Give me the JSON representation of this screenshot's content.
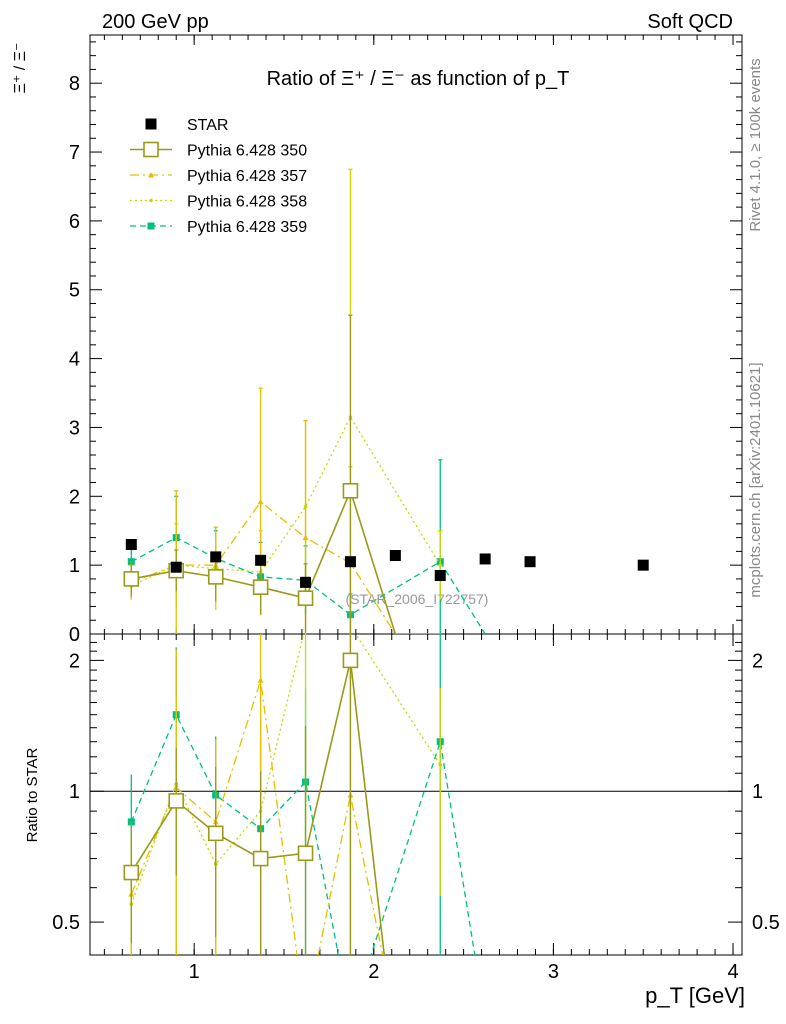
{
  "header": {
    "left": "200 GeV pp",
    "right": "Soft QCD"
  },
  "side_labels": {
    "rivet": "Rivet 4.1.0, ≥ 100k events",
    "mcplots": "mcplots.cern.ch [arXiv:2401.10621]"
  },
  "colors": {
    "star": "#000000",
    "p350": "#9a9a1a",
    "p357": "#e6c000",
    "p358": "#c8d800",
    "p359": "#00c080"
  },
  "chart_data": {
    "type": "line",
    "title": "Ratio of Ξ⁺ / Ξ⁻ as function of p_T",
    "xlabel": "p_T [GeV]",
    "ylabel": "Ξ⁺ / Ξ⁻",
    "ratio_ylabel": "Ratio to STAR",
    "watermark": "(STAR_2006_I722757)",
    "xlim": [
      0.42,
      4.05
    ],
    "ylim": [
      0,
      8.7
    ],
    "ratio_ylim": [
      0.42,
      2.3
    ],
    "xticks": [
      1,
      2,
      3,
      4
    ],
    "yticks": [
      0,
      1,
      2,
      3,
      4,
      5,
      6,
      7,
      8
    ],
    "ratio_yticks": [
      0.5,
      1,
      2
    ],
    "legend_position": "top-left",
    "series": [
      {
        "name": "STAR",
        "style": "data",
        "x": [
          0.65,
          0.9,
          1.12,
          1.37,
          1.62,
          1.87,
          2.12,
          2.37,
          2.62,
          2.87,
          3.5
        ],
        "y": [
          1.3,
          0.97,
          1.12,
          1.07,
          0.75,
          1.05,
          1.14,
          0.85,
          1.09,
          1.05,
          1.0
        ]
      },
      {
        "name": "Pythia 6.428 350",
        "style": "solid",
        "marker": "open-square",
        "x": [
          0.65,
          0.9,
          1.12,
          1.37,
          1.62,
          1.87,
          2.12,
          2.37
        ],
        "y": [
          0.8,
          0.92,
          0.83,
          0.68,
          0.52,
          2.08,
          0.0,
          0.0
        ],
        "yerr": [
          0.25,
          0.3,
          0.35,
          0.4,
          0.5,
          2.55,
          0.0,
          0.0
        ],
        "ratio": [
          0.65,
          0.95,
          0.8,
          0.7,
          0.72,
          2.0,
          0.0,
          0.0
        ]
      },
      {
        "name": "Pythia 6.428 357",
        "style": "dashdot",
        "marker": "small-triangle",
        "x": [
          0.65,
          0.9,
          1.12,
          1.37,
          1.62,
          1.87,
          2.12,
          2.37
        ],
        "y": [
          0.75,
          1.0,
          1.0,
          1.92,
          1.4,
          1.03,
          0.0,
          0.0
        ],
        "yerr": [
          0.25,
          1.08,
          0.55,
          1.65,
          1.7,
          1.4,
          0.0,
          0.0
        ],
        "ratio": [
          0.58,
          1.02,
          0.85,
          1.8,
          0.3,
          0.98,
          0.3,
          0.0
        ]
      },
      {
        "name": "Pythia 6.428 358",
        "style": "dotted",
        "marker": "small-dot",
        "x": [
          0.65,
          0.9,
          1.12,
          1.37,
          1.62,
          1.87,
          2.37
        ],
        "y": [
          0.7,
          1.0,
          0.95,
          0.9,
          1.85,
          3.15,
          1.0
        ],
        "yerr": [
          0.2,
          0.6,
          0.6,
          0.6,
          1.25,
          3.6,
          0.5
        ],
        "ratio": [
          0.55,
          1.04,
          0.68,
          0.9,
          2.4,
          2.4,
          1.15
        ]
      },
      {
        "name": "Pythia 6.428 359",
        "style": "dashed",
        "marker": "filled-square",
        "x": [
          0.65,
          0.9,
          1.12,
          1.37,
          1.62,
          1.87,
          2.37,
          2.62
        ],
        "y": [
          1.05,
          1.4,
          1.1,
          0.83,
          0.78,
          0.28,
          1.05,
          0.0
        ],
        "yerr": [
          0.3,
          0.6,
          0.4,
          0.5,
          0.5,
          0.3,
          1.48,
          0.0
        ],
        "ratio": [
          0.85,
          1.5,
          0.98,
          0.82,
          1.05,
          0.3,
          1.3,
          0.3
        ]
      }
    ]
  }
}
